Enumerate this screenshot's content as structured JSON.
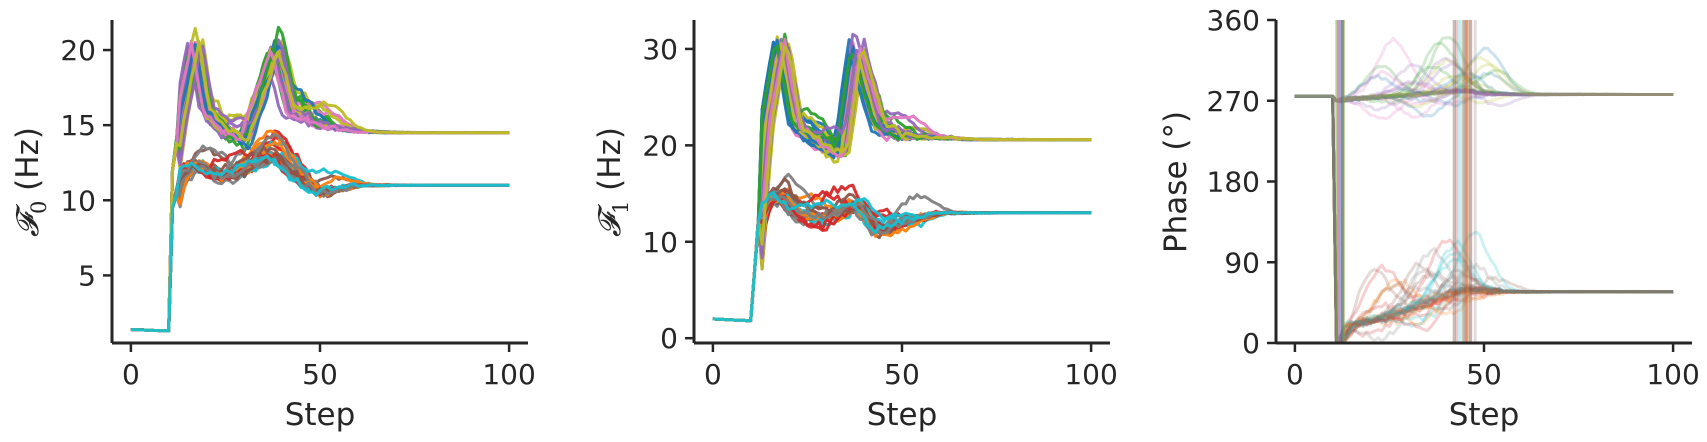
{
  "palette": [
    "#1f77b4",
    "#ff7f0e",
    "#2ca02c",
    "#d62728",
    "#9467bd",
    "#8c564b",
    "#e377c2",
    "#7f7f7f",
    "#bcbd22",
    "#17becf"
  ],
  "chart_data": [
    {
      "type": "line",
      "xlabel": "Step",
      "ylabel_symbol": "𝓕",
      "ylabel_sub": "0",
      "ylabel_unit": " (Hz)",
      "xlim": [
        -5,
        105
      ],
      "ylim": [
        0.5,
        22
      ],
      "xticks": [
        0,
        50,
        100
      ],
      "yticks": [
        5,
        10,
        15,
        20
      ],
      "grid": false,
      "legend": "none",
      "summary_series": [
        {
          "name": "upper-cluster",
          "x": [
            0,
            10,
            11,
            13,
            17,
            20,
            25,
            30,
            38,
            42,
            50,
            60,
            70,
            100
          ],
          "y": [
            1.4,
            1.3,
            12.0,
            15.5,
            20.5,
            16.0,
            14.5,
            14.0,
            20.0,
            16.0,
            15.0,
            14.6,
            14.5,
            14.5
          ]
        },
        {
          "name": "lower-cluster",
          "x": [
            0,
            10,
            11,
            13,
            17,
            20,
            25,
            30,
            38,
            42,
            50,
            60,
            70,
            100
          ],
          "y": [
            1.4,
            1.3,
            9.5,
            11.5,
            12.5,
            12.0,
            11.5,
            12.0,
            13.0,
            12.0,
            10.5,
            11.0,
            11.0,
            11.0
          ]
        }
      ]
    },
    {
      "type": "line",
      "xlabel": "Step",
      "ylabel_symbol": "𝓕",
      "ylabel_sub": "1",
      "ylabel_unit": " (Hz)",
      "xlim": [
        -5,
        105
      ],
      "ylim": [
        -0.5,
        33
      ],
      "xticks": [
        0,
        50,
        100
      ],
      "yticks": [
        0,
        10,
        20,
        30
      ],
      "grid": false,
      "legend": "none",
      "summary_series": [
        {
          "name": "upper-cluster",
          "x": [
            0,
            10,
            12,
            14,
            18,
            22,
            28,
            34,
            38,
            44,
            50,
            60,
            70,
            100
          ],
          "y": [
            2.0,
            1.8,
            12.0,
            22.0,
            31.0,
            22.0,
            20.0,
            19.0,
            30.0,
            22.0,
            21.0,
            20.8,
            20.6,
            20.6
          ]
        },
        {
          "name": "lower-cluster",
          "x": [
            0,
            10,
            12,
            14,
            18,
            22,
            28,
            34,
            38,
            44,
            50,
            60,
            70,
            100
          ],
          "y": [
            2.0,
            1.8,
            12.0,
            14.0,
            15.0,
            13.0,
            12.5,
            13.0,
            14.0,
            11.0,
            12.0,
            13.0,
            13.0,
            13.0
          ]
        }
      ]
    },
    {
      "type": "line",
      "xlabel": "Step",
      "ylabel": "Phase (°)",
      "xlim": [
        -5,
        105
      ],
      "ylim": [
        0,
        360
      ],
      "xticks": [
        0,
        50,
        100
      ],
      "yticks": [
        0,
        90,
        180,
        270,
        360
      ],
      "grid": false,
      "legend": "none",
      "summary_series": [
        {
          "name": "upper-cluster",
          "x": [
            0,
            10,
            11,
            15,
            25,
            35,
            45,
            50,
            60,
            80,
            100
          ],
          "y": [
            275,
            275,
            270,
            272,
            275,
            278,
            282,
            278,
            277,
            277,
            277
          ]
        },
        {
          "name": "lower-cluster",
          "x": [
            0,
            10,
            11,
            15,
            25,
            35,
            45,
            50,
            60,
            80,
            100
          ],
          "y": [
            275,
            275,
            0,
            20,
            30,
            45,
            60,
            58,
            57,
            57,
            57
          ]
        }
      ]
    }
  ]
}
